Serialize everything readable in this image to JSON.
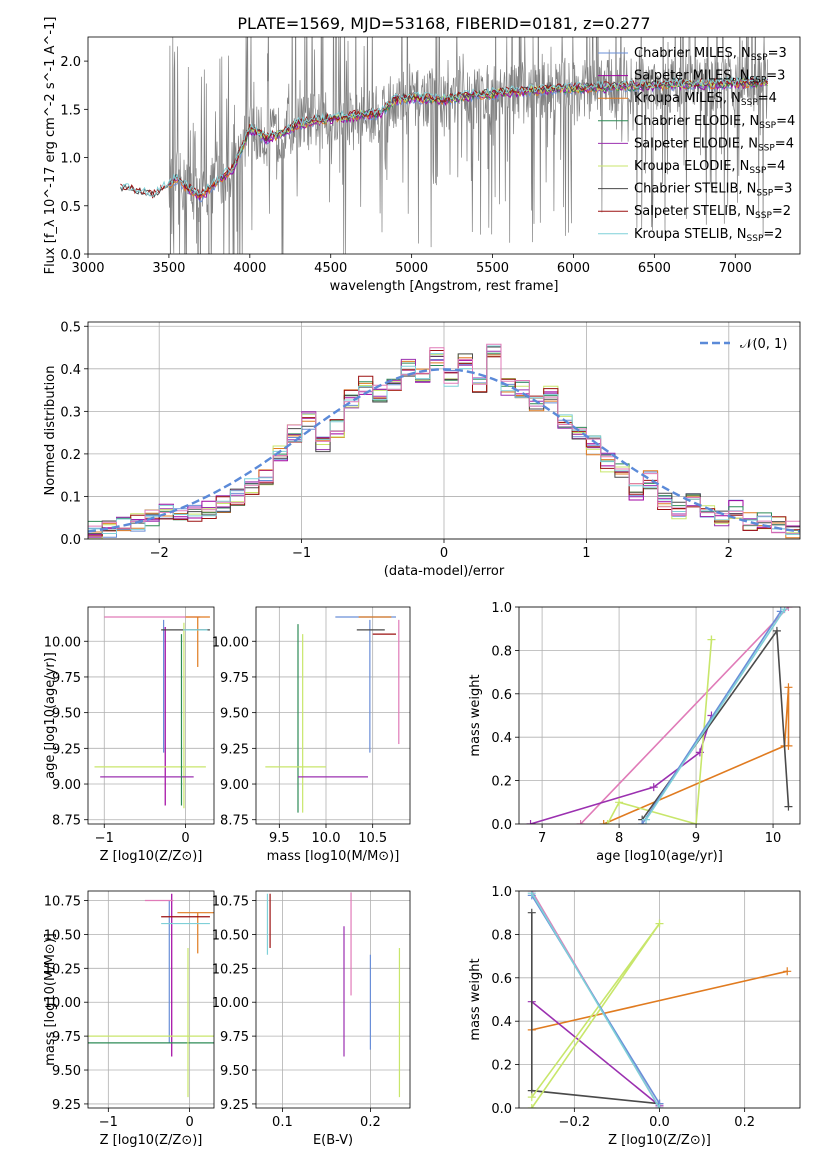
{
  "figure": {
    "title": "PLATE=1569, MJD=53168, FIBERID=0181, z=0.277"
  },
  "colors": {
    "chabrier_miles": "#6a8fd8",
    "salpeter_miles": "#a000a0",
    "kroupa_miles": "#e07b20",
    "chabrier_elodie": "#2e8b57",
    "salpeter_elodie": "#9b30b0",
    "kroupa_elodie": "#c8e66b",
    "chabrier_stelib": "#4a4a4a",
    "salpeter_stelib": "#9b1010",
    "kroupa_stelib": "#7fd0d8",
    "pink": "#e07bb8",
    "data_grey": "#808080",
    "normal_curve": "#5b8ad8"
  },
  "chart_data": [
    {
      "id": "spectrum",
      "type": "line",
      "xlabel": "wavelength [Angstrom, rest frame]",
      "ylabel": "Flux [f_λ 10^-17 erg cm^-2 s^-1 A^-1]",
      "xlim": [
        3000,
        7400
      ],
      "ylim": [
        0,
        2.25
      ],
      "xticks": [
        3000,
        3500,
        4000,
        4500,
        5000,
        5500,
        6000,
        6500,
        7000
      ],
      "yticks": [
        0.0,
        0.5,
        1.0,
        1.5,
        2.0
      ],
      "ytick_labels": [
        "0.0",
        "0.5",
        "1.0",
        "1.5",
        "2.0"
      ],
      "legend_position": "top-right",
      "legend": [
        {
          "label": "Chabrier MILES, N_SSP=3",
          "color_key": "chabrier_miles"
        },
        {
          "label": "Salpeter MILES, N_SSP=3",
          "color_key": "salpeter_miles"
        },
        {
          "label": "Kroupa MILES, N_SSP=4",
          "color_key": "kroupa_miles"
        },
        {
          "label": "Chabrier ELODIE, N_SSP=4",
          "color_key": "chabrier_elodie"
        },
        {
          "label": "Salpeter ELODIE, N_SSP=4",
          "color_key": "salpeter_elodie"
        },
        {
          "label": "Kroupa ELODIE, N_SSP=4",
          "color_key": "kroupa_elodie"
        },
        {
          "label": "Chabrier STELIB, N_SSP=3",
          "color_key": "chabrier_stelib"
        },
        {
          "label": "Salpeter STELIB, N_SSP=2",
          "color_key": "salpeter_stelib"
        },
        {
          "label": "Kroupa STELIB, N_SSP=2",
          "color_key": "kroupa_stelib"
        }
      ],
      "model_continuum": {
        "x": [
          3200,
          3300,
          3400,
          3500,
          3550,
          3600,
          3700,
          3800,
          3900,
          4000,
          4100,
          4200,
          4300,
          4400,
          4500,
          4600,
          4700,
          4800,
          4900,
          5000,
          5200,
          5400,
          5600,
          5800,
          6000,
          6200,
          6400,
          6600,
          6800,
          7000,
          7200
        ],
        "y": [
          0.68,
          0.65,
          0.6,
          0.72,
          0.78,
          0.7,
          0.6,
          0.75,
          0.9,
          1.3,
          1.2,
          1.25,
          1.35,
          1.38,
          1.4,
          1.42,
          1.45,
          1.45,
          1.6,
          1.62,
          1.6,
          1.65,
          1.68,
          1.7,
          1.72,
          1.73,
          1.74,
          1.76,
          1.76,
          1.77,
          1.78
        ]
      }
    },
    {
      "id": "residuals",
      "type": "line",
      "xlabel": "(data-model)/error",
      "ylabel": "Normed distribution",
      "xlim": [
        -2.5,
        2.5
      ],
      "ylim": [
        0,
        0.51
      ],
      "xticks": [
        -2,
        -1,
        0,
        1,
        2
      ],
      "xtick_labels": [
        "−2",
        "−1",
        "0",
        "1",
        "2"
      ],
      "yticks": [
        0.0,
        0.1,
        0.2,
        0.3,
        0.4,
        0.5
      ],
      "ytick_labels": [
        "0.0",
        "0.1",
        "0.2",
        "0.3",
        "0.4",
        "0.5"
      ],
      "legend_position": "top-right",
      "legend": [
        {
          "label": "𝒩(0, 1)",
          "color_key": "normal_curve"
        }
      ],
      "bin_edges": [
        -2.5,
        -2.4,
        -2.3,
        -2.2,
        -2.1,
        -2.0,
        -1.9,
        -1.8,
        -1.7,
        -1.6,
        -1.5,
        -1.4,
        -1.3,
        -1.2,
        -1.1,
        -1.0,
        -0.9,
        -0.8,
        -0.7,
        -0.6,
        -0.5,
        -0.4,
        -0.3,
        -0.2,
        -0.1,
        0.0,
        0.1,
        0.2,
        0.3,
        0.4,
        0.5,
        0.6,
        0.7,
        0.8,
        0.9,
        1.0,
        1.1,
        1.2,
        1.3,
        1.4,
        1.5,
        1.6,
        1.7,
        1.8,
        1.9,
        2.0,
        2.1,
        2.2,
        2.3,
        2.4,
        2.5
      ],
      "hist_base": [
        0.02,
        0.02,
        0.03,
        0.04,
        0.05,
        0.06,
        0.05,
        0.06,
        0.07,
        0.08,
        0.1,
        0.12,
        0.15,
        0.2,
        0.25,
        0.28,
        0.22,
        0.26,
        0.33,
        0.36,
        0.34,
        0.37,
        0.4,
        0.39,
        0.43,
        0.38,
        0.42,
        0.36,
        0.45,
        0.36,
        0.35,
        0.32,
        0.34,
        0.27,
        0.24,
        0.22,
        0.18,
        0.16,
        0.11,
        0.14,
        0.09,
        0.07,
        0.09,
        0.07,
        0.05,
        0.07,
        0.04,
        0.04,
        0.03,
        0.02
      ]
    },
    {
      "id": "age_vs_Z",
      "type": "scatter",
      "xlabel": "Z [log10(Z/Z⊙)]",
      "ylabel": "age  [log10(age/yr)]",
      "xlim": [
        -1.2,
        0.35
      ],
      "ylim": [
        8.72,
        10.24
      ],
      "xticks": [
        -1,
        0
      ],
      "xtick_labels": [
        "−1",
        "0"
      ],
      "yticks": [
        8.75,
        9.0,
        9.25,
        9.5,
        9.75,
        10.0
      ],
      "ytick_labels": [
        "8.75",
        "9.00",
        "9.25",
        "9.50",
        "9.75",
        "10.00"
      ],
      "errorbars": [
        {
          "x": -0.27,
          "y": 9.55,
          "yerr": [
            0.33,
            0.6
          ],
          "color_key": "chabrier_miles"
        },
        {
          "x": -0.25,
          "y": 9.4,
          "yerr": [
            0.55,
            0.7
          ],
          "color_key": "salpeter_miles"
        },
        {
          "x": -0.6,
          "y": 10.17,
          "xerr": [
            0.4,
            0.78
          ],
          "color_key": "pink"
        },
        {
          "x": 0.15,
          "y": 10.17,
          "xerr": [
            0.15,
            0.15
          ],
          "yerr": [
            0.35,
            0.0
          ],
          "color_key": "kroupa_miles"
        },
        {
          "x": -0.05,
          "y": 10.08,
          "xerr": [
            0.25,
            0.35
          ],
          "color_key": "chabrier_stelib"
        },
        {
          "x": -0.02,
          "y": 9.48,
          "yerr": [
            0.65,
            0.65
          ],
          "color_key": "kroupa_elodie"
        },
        {
          "x": -0.5,
          "y": 9.12,
          "xerr": [
            0.62,
            0.75
          ],
          "color_key": "kroupa_elodie"
        },
        {
          "x": -0.5,
          "y": 9.05,
          "xerr": [
            0.55,
            0.6
          ],
          "color_key": "salpeter_elodie"
        },
        {
          "x": -0.05,
          "y": 9.55,
          "yerr": [
            0.7,
            0.5
          ],
          "color_key": "chabrier_elodie"
        },
        {
          "x": 0.12,
          "y": 10.08,
          "xerr": [
            0.15,
            0.15
          ],
          "color_key": "kroupa_stelib"
        }
      ]
    },
    {
      "id": "age_vs_mass",
      "type": "scatter",
      "xlabel": "mass [log10(M/M⊙)]",
      "xlim": [
        9.25,
        10.9
      ],
      "ylim": [
        8.72,
        10.24
      ],
      "xticks": [
        9.5,
        10.0,
        10.5
      ],
      "xtick_labels": [
        "9.5",
        "10.0",
        "10.5"
      ],
      "yticks": [
        8.75,
        9.0,
        9.25,
        9.5,
        9.75,
        10.0
      ],
      "ytick_labels": [
        "8.75",
        "9.00",
        "9.25",
        "9.50",
        "9.75",
        "10.00"
      ],
      "errorbars": [
        {
          "x": 10.47,
          "y": 9.6,
          "yerr": [
            0.38,
            0.55
          ],
          "color_key": "chabrier_miles"
        },
        {
          "x": 10.4,
          "y": 10.17,
          "xerr": [
            0.3,
            0.35
          ],
          "color_key": "chabrier_miles"
        },
        {
          "x": 10.78,
          "y": 9.7,
          "yerr": [
            0.42,
            0.45
          ],
          "color_key": "pink"
        },
        {
          "x": 10.55,
          "y": 10.17,
          "xerr": [
            0.2,
            0.15
          ],
          "color_key": "kroupa_miles"
        },
        {
          "x": 10.48,
          "y": 10.08,
          "xerr": [
            0.15,
            0.15
          ],
          "color_key": "chabrier_stelib"
        },
        {
          "x": 9.7,
          "y": 9.5,
          "yerr": [
            0.7,
            0.62
          ],
          "color_key": "chabrier_elodie"
        },
        {
          "x": 9.75,
          "y": 9.5,
          "yerr": [
            0.7,
            0.55
          ],
          "color_key": "kroupa_elodie"
        },
        {
          "x": 9.7,
          "y": 9.12,
          "xerr": [
            0.35,
            0.3
          ],
          "color_key": "kroupa_elodie"
        },
        {
          "x": 10.0,
          "y": 9.05,
          "xerr": [
            0.3,
            0.45
          ],
          "color_key": "salpeter_elodie"
        },
        {
          "x": 10.6,
          "y": 10.05,
          "xerr": [
            0.1,
            0.15
          ],
          "color_key": "salpeter_stelib"
        }
      ]
    },
    {
      "id": "mass_weight_vs_age",
      "type": "line",
      "xlabel": "age  [log10(age/yr)]",
      "ylabel": "mass weight",
      "xlim": [
        6.7,
        10.35
      ],
      "ylim": [
        0,
        1.0
      ],
      "xticks": [
        7,
        8,
        9,
        10
      ],
      "xtick_labels": [
        "7",
        "8",
        "9",
        "10"
      ],
      "yticks": [
        0.0,
        0.2,
        0.4,
        0.6,
        0.8,
        1.0
      ],
      "ytick_labels": [
        "0.0",
        "0.2",
        "0.4",
        "0.6",
        "0.8",
        "1.0"
      ],
      "series": [
        {
          "color_key": "pink",
          "x": [
            7.5,
            10.2
          ],
          "y": [
            0.0,
            1.0
          ]
        },
        {
          "color_key": "salpeter_elodie",
          "x": [
            6.85,
            8.45,
            9.05,
            9.2
          ],
          "y": [
            0.0,
            0.17,
            0.33,
            0.5
          ]
        },
        {
          "color_key": "kroupa_miles",
          "x": [
            7.8,
            10.15,
            10.2,
            10.2
          ],
          "y": [
            0.0,
            0.36,
            0.63,
            0.36
          ]
        },
        {
          "color_key": "kroupa_elodie",
          "x": [
            7.85,
            8.0,
            9.0,
            9.2,
            9.2
          ],
          "y": [
            0.0,
            0.1,
            0.0,
            0.85,
            0.85
          ]
        },
        {
          "color_key": "chabrier_stelib",
          "x": [
            8.3,
            10.05,
            10.2
          ],
          "y": [
            0.02,
            0.89,
            0.08
          ]
        },
        {
          "color_key": "chabrier_miles",
          "x": [
            8.3,
            10.1
          ],
          "y": [
            0.0,
            0.98
          ]
        },
        {
          "color_key": "kroupa_stelib",
          "x": [
            8.35,
            10.15
          ],
          "y": [
            0.02,
            0.99
          ]
        }
      ]
    },
    {
      "id": "mass_vs_Z",
      "type": "scatter",
      "xlabel": "Z [log10(Z/Z⊙)]",
      "ylabel": "mass [log10(M/M⊙)]",
      "xlim": [
        -1.25,
        0.3
      ],
      "ylim": [
        9.22,
        10.82
      ],
      "xticks": [
        -1,
        0
      ],
      "xtick_labels": [
        "−1",
        "0"
      ],
      "yticks": [
        9.25,
        9.5,
        9.75,
        10.0,
        10.25,
        10.5,
        10.75
      ],
      "ytick_labels": [
        "9.25",
        "9.50",
        "9.75",
        "10.00",
        "10.25",
        "10.50",
        "10.75"
      ],
      "errorbars": [
        {
          "x": -0.25,
          "y": 10.2,
          "yerr": [
            0.5,
            0.55
          ],
          "color_key": "chabrier_miles"
        },
        {
          "x": -0.22,
          "y": 10.2,
          "yerr": [
            0.6,
            0.6
          ],
          "color_key": "salpeter_miles"
        },
        {
          "x": -0.2,
          "y": 10.75,
          "xerr": [
            0.35,
            0.0
          ],
          "color_key": "pink"
        },
        {
          "x": 0.1,
          "y": 10.66,
          "xerr": [
            0.25,
            0.2
          ],
          "yerr": [
            0.3,
            0.0
          ],
          "color_key": "kroupa_miles"
        },
        {
          "x": -0.05,
          "y": 10.63,
          "xerr": [
            0.3,
            0.3
          ],
          "color_key": "salpeter_stelib"
        },
        {
          "x": -0.05,
          "y": 10.58,
          "xerr": [
            0.3,
            0.3
          ],
          "color_key": "kroupa_stelib"
        },
        {
          "x": -0.45,
          "y": 9.75,
          "xerr": [
            0.8,
            0.75
          ],
          "color_key": "kroupa_elodie"
        },
        {
          "x": -0.45,
          "y": 9.7,
          "xerr": [
            0.8,
            0.75
          ],
          "color_key": "chabrier_elodie"
        },
        {
          "x": -0.02,
          "y": 9.85,
          "yerr": [
            0.55,
            0.55
          ],
          "color_key": "kroupa_elodie"
        }
      ]
    },
    {
      "id": "mass_vs_ebv",
      "type": "scatter",
      "xlabel": "E(B-V)",
      "xlim": [
        0.07,
        0.245
      ],
      "ylim": [
        9.22,
        10.82
      ],
      "xticks": [
        0.1,
        0.2
      ],
      "xtick_labels": [
        "0.1",
        "0.2"
      ],
      "yticks": [
        9.25,
        9.5,
        9.75,
        10.0,
        10.25,
        10.5,
        10.75
      ],
      "ytick_labels": [
        "9.25",
        "9.50",
        "9.75",
        "10.00",
        "10.25",
        "10.50",
        "10.75"
      ],
      "errorbars": [
        {
          "x": 0.083,
          "y": 10.55,
          "yerr": [
            0.2,
            0.25
          ],
          "color_key": "kroupa_stelib"
        },
        {
          "x": 0.086,
          "y": 10.6,
          "yerr": [
            0.2,
            0.2
          ],
          "color_key": "salpeter_stelib"
        },
        {
          "x": 0.17,
          "y": 10.08,
          "yerr": [
            0.48,
            0.48
          ],
          "color_key": "salpeter_elodie"
        },
        {
          "x": 0.178,
          "y": 10.43,
          "yerr": [
            0.38,
            0.38
          ],
          "color_key": "pink"
        },
        {
          "x": 0.2,
          "y": 10.0,
          "yerr": [
            0.35,
            0.35
          ],
          "color_key": "chabrier_miles"
        },
        {
          "x": 0.233,
          "y": 9.85,
          "yerr": [
            0.55,
            0.55
          ],
          "color_key": "kroupa_elodie"
        }
      ]
    },
    {
      "id": "mass_weight_vs_Z",
      "type": "line",
      "xlabel": "Z [log10(Z/Z⊙)]",
      "ylabel": "mass weight",
      "xlim": [
        -0.33,
        0.33
      ],
      "ylim": [
        0,
        1.0
      ],
      "xticks": [
        -0.2,
        0.0,
        0.2
      ],
      "xtick_labels": [
        "−0.2",
        "0.0",
        "0.2"
      ],
      "yticks": [
        0.0,
        0.2,
        0.4,
        0.6,
        0.8,
        1.0
      ],
      "ytick_labels": [
        "0.0",
        "0.2",
        "0.4",
        "0.6",
        "0.8",
        "1.0"
      ],
      "series": [
        {
          "color_key": "kroupa_miles",
          "x": [
            -0.3,
            0.3
          ],
          "y": [
            0.36,
            0.63
          ]
        },
        {
          "color_key": "salpeter_elodie",
          "x": [
            -0.3,
            0.0
          ],
          "y": [
            0.49,
            0.01
          ]
        },
        {
          "color_key": "chabrier_stelib",
          "x": [
            -0.3,
            -0.3,
            0.0
          ],
          "y": [
            0.9,
            0.08,
            0.02
          ]
        },
        {
          "color_key": "kroupa_elodie",
          "x": [
            -0.3,
            0.0,
            -0.3,
            0.0
          ],
          "y": [
            0.0,
            0.85,
            0.05,
            0.85
          ]
        },
        {
          "color_key": "pink",
          "x": [
            -0.3,
            0.0
          ],
          "y": [
            1.0,
            0.0
          ]
        },
        {
          "color_key": "chabrier_miles",
          "x": [
            -0.3,
            0.0
          ],
          "y": [
            0.98,
            0.02
          ]
        },
        {
          "color_key": "kroupa_stelib",
          "x": [
            -0.3,
            0.0
          ],
          "y": [
            0.99,
            0.0
          ]
        }
      ]
    }
  ]
}
